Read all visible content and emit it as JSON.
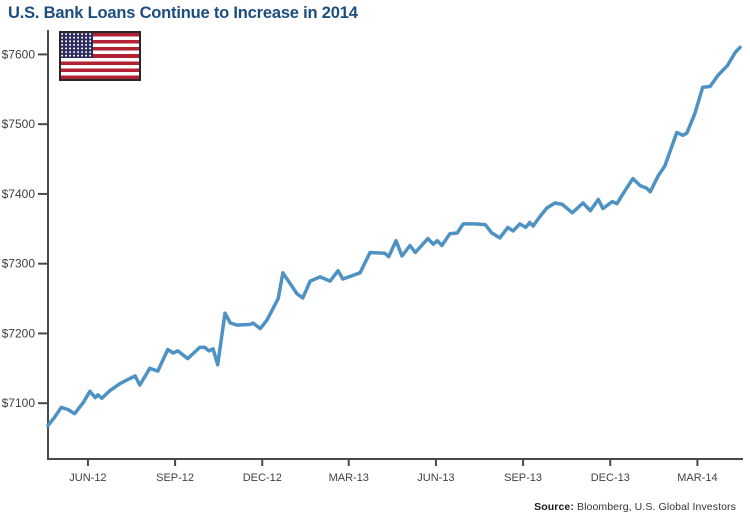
{
  "title": "U.S. Bank Loans Continue to Increase in 2014",
  "flag_icon": "us-flag",
  "source": {
    "label": "Source:",
    "text": " Bloomberg, U.S. Global Investors"
  },
  "colors": {
    "title": "#1b4e80",
    "line": "#4e92c3",
    "axis": "#48484a",
    "tick_label": "#414042"
  },
  "chart_data": {
    "type": "line",
    "title": "U.S. Bank Loans Continue to Increase in 2014",
    "grid": false,
    "legend": false,
    "x_axis": {
      "range_weeks": [
        0,
        104
      ],
      "ticks": [
        {
          "label": "JUN-12",
          "week": 6.0
        },
        {
          "label": "SEP-12",
          "week": 19.1
        },
        {
          "label": "DEC-12",
          "week": 32.2
        },
        {
          "label": "MAR-13",
          "week": 45.2
        },
        {
          "label": "JUN-13",
          "week": 58.3
        },
        {
          "label": "SEP-13",
          "week": 71.4
        },
        {
          "label": "DEC-13",
          "week": 84.5
        },
        {
          "label": "MAR-14",
          "week": 97.6
        }
      ]
    },
    "y_axis": {
      "prefix": "$",
      "ticks": [
        7100,
        7200,
        7300,
        7400,
        7500,
        7600
      ],
      "range": [
        7020,
        7635
      ]
    },
    "series": [
      {
        "name": "U.S. bank loans",
        "color": "#4e92c3",
        "points_week_value": [
          [
            0,
            7068
          ],
          [
            1,
            7080
          ],
          [
            2,
            7094
          ],
          [
            3,
            7091
          ],
          [
            4,
            7085
          ],
          [
            5.3,
            7101
          ],
          [
            6.3,
            7117
          ],
          [
            7.1,
            7108
          ],
          [
            7.5,
            7112
          ],
          [
            8.1,
            7107
          ],
          [
            9.3,
            7118
          ],
          [
            10.8,
            7128
          ],
          [
            12,
            7134
          ],
          [
            13.1,
            7139
          ],
          [
            13.8,
            7126
          ],
          [
            15.3,
            7150
          ],
          [
            16.5,
            7146
          ],
          [
            18,
            7177
          ],
          [
            18.8,
            7172
          ],
          [
            19.5,
            7175
          ],
          [
            21,
            7164
          ],
          [
            22.8,
            7180
          ],
          [
            23.6,
            7180
          ],
          [
            24.2,
            7175
          ],
          [
            24.8,
            7178
          ],
          [
            25.5,
            7155
          ],
          [
            26.6,
            7229
          ],
          [
            27.4,
            7215
          ],
          [
            28.4,
            7212
          ],
          [
            30.4,
            7213
          ],
          [
            30.8,
            7215
          ],
          [
            31.9,
            7207
          ],
          [
            32.9,
            7219
          ],
          [
            34.6,
            7250
          ],
          [
            35.3,
            7287
          ],
          [
            37.4,
            7257
          ],
          [
            38.3,
            7251
          ],
          [
            39.4,
            7275
          ],
          [
            40.9,
            7281
          ],
          [
            42.4,
            7275
          ],
          [
            43.6,
            7290
          ],
          [
            44.3,
            7278
          ],
          [
            46.9,
            7287
          ],
          [
            48.4,
            7316
          ],
          [
            50.6,
            7315
          ],
          [
            51.2,
            7310
          ],
          [
            52.3,
            7333
          ],
          [
            53.2,
            7311
          ],
          [
            54.4,
            7326
          ],
          [
            55.2,
            7316
          ],
          [
            57.1,
            7336
          ],
          [
            57.9,
            7328
          ],
          [
            58.5,
            7333
          ],
          [
            59.2,
            7326
          ],
          [
            60.4,
            7343
          ],
          [
            61.5,
            7344
          ],
          [
            62.4,
            7357
          ],
          [
            64.2,
            7357
          ],
          [
            65.7,
            7356
          ],
          [
            66.7,
            7344
          ],
          [
            67.9,
            7337
          ],
          [
            69.1,
            7352
          ],
          [
            69.9,
            7347
          ],
          [
            70.9,
            7357
          ],
          [
            71.8,
            7352
          ],
          [
            72.4,
            7359
          ],
          [
            72.9,
            7354
          ],
          [
            73.9,
            7367
          ],
          [
            75,
            7380
          ],
          [
            76.2,
            7387
          ],
          [
            77.3,
            7385
          ],
          [
            78.8,
            7373
          ],
          [
            80.4,
            7387
          ],
          [
            81.5,
            7376
          ],
          [
            82.7,
            7392
          ],
          [
            83.4,
            7379
          ],
          [
            84.8,
            7389
          ],
          [
            85.5,
            7386
          ],
          [
            86.4,
            7400
          ],
          [
            87.9,
            7422
          ],
          [
            89,
            7412
          ],
          [
            90,
            7408
          ],
          [
            90.5,
            7403
          ],
          [
            91.7,
            7426
          ],
          [
            92.7,
            7440
          ],
          [
            94.5,
            7488
          ],
          [
            95.4,
            7484
          ],
          [
            96,
            7487
          ],
          [
            97.2,
            7515
          ],
          [
            98.4,
            7553
          ],
          [
            99.5,
            7554
          ],
          [
            100.7,
            7570
          ],
          [
            102.1,
            7584
          ],
          [
            103.3,
            7603
          ],
          [
            104,
            7610
          ]
        ]
      }
    ]
  }
}
